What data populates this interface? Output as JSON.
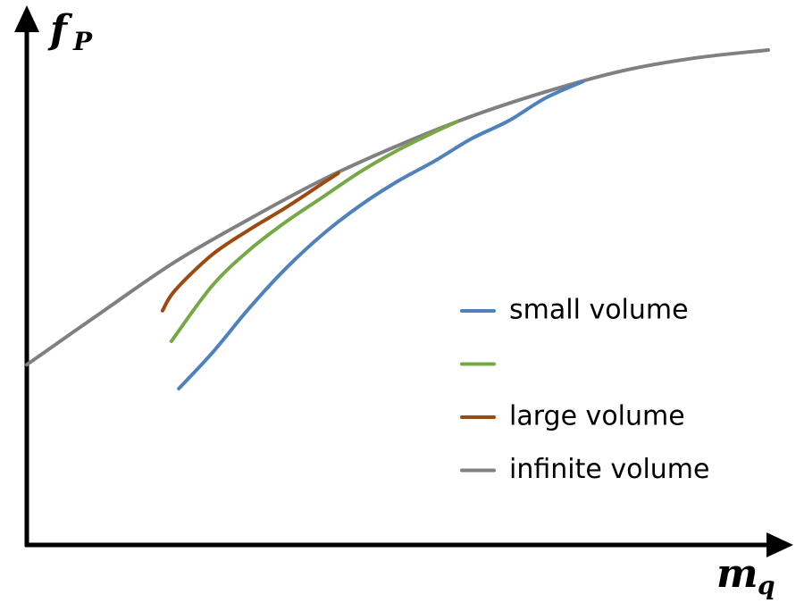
{
  "chart_data": {
    "type": "line",
    "ylabel": "f",
    "ylabel_sub": "P",
    "xlabel": "m",
    "xlabel_sub": "q",
    "xlim": [
      0,
      100
    ],
    "ylim": [
      0,
      100
    ],
    "series": [
      {
        "name": "small volume",
        "color": "#4f81bd",
        "x": [
          20.5,
          25,
          30,
          35,
          40,
          45,
          50,
          55,
          60,
          65,
          70,
          75
        ],
        "values": [
          30.7,
          37.7,
          46.5,
          54.4,
          61.1,
          66.7,
          71.4,
          75.4,
          79.8,
          83.3,
          87.8,
          91.0
        ]
      },
      {
        "name": null,
        "color": "#77a846",
        "x": [
          19.5,
          25,
          30,
          35,
          40,
          45,
          50,
          55,
          58
        ],
        "values": [
          40.0,
          50.9,
          57.9,
          63.5,
          68.4,
          73.3,
          77.5,
          81.1,
          83.1
        ]
      },
      {
        "name": "large volume",
        "color": "#9c4a10",
        "x": [
          18.3,
          20,
          25,
          30,
          35,
          40,
          42
        ],
        "values": [
          46.0,
          50.0,
          57.0,
          61.9,
          66.3,
          71.1,
          73.0
        ]
      },
      {
        "name": "infinite volume",
        "color": "#808080",
        "x": [
          0,
          10,
          20,
          30,
          40,
          50,
          60,
          70,
          80,
          90,
          100
        ],
        "values": [
          35.4,
          45.6,
          55.6,
          64.0,
          71.8,
          78.4,
          84.2,
          89.0,
          93.0,
          95.6,
          97.2
        ]
      }
    ]
  }
}
